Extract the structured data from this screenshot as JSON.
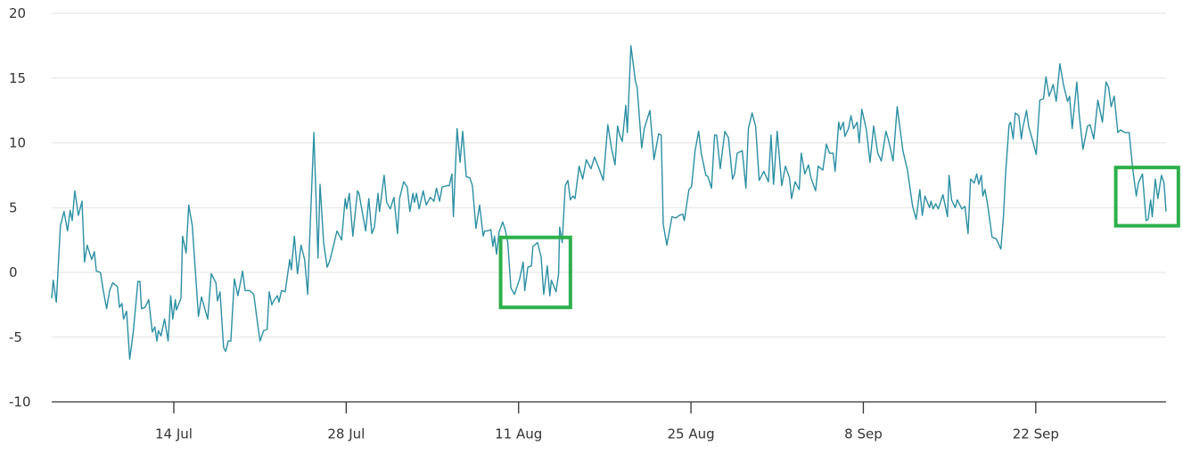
{
  "chart_data": {
    "type": "line",
    "title": "",
    "xlabel": "",
    "ylabel": "",
    "ylim": [
      -10,
      20
    ],
    "yticks": [
      -10,
      -5,
      0,
      5,
      10,
      15,
      20
    ],
    "xlim": [
      "07-04 02:00",
      "10-02 14:00"
    ],
    "xticks": [
      {
        "date": "07-14 00:00",
        "label": "14 Jul"
      },
      {
        "date": "07-28 00:00",
        "label": "28 Jul"
      },
      {
        "date": "08-11 00:00",
        "label": "11 Aug"
      },
      {
        "date": "08-25 00:00",
        "label": "25 Aug"
      },
      {
        "date": "09-08 00:00",
        "label": "8 Sep"
      },
      {
        "date": "09-22 00:00",
        "label": "22 Sep"
      }
    ],
    "grid": "horizontal",
    "line_color": "#2b8fa3",
    "highlight_color": "#2db04b",
    "highlights": [
      {
        "x": [
          "08-09 13:00",
          "08-15 05:00"
        ],
        "y": [
          -2.7,
          2.7
        ]
      },
      {
        "x": [
          "09-28 12:00",
          "10-03 14:00"
        ],
        "y": [
          3.6,
          8.1
        ]
      }
    ],
    "points": [
      [
        "07-04 02:00",
        -2.0
      ],
      [
        "07-04 05:00",
        -0.6
      ],
      [
        "07-04 11:00",
        -2.3
      ],
      [
        "07-04 19:00",
        3.6
      ],
      [
        "07-05 02:00",
        4.7
      ],
      [
        "07-05 09:00",
        3.2
      ],
      [
        "07-05 14:00",
        4.8
      ],
      [
        "07-05 18:00",
        4.0
      ],
      [
        "07-05 23:00",
        6.3
      ],
      [
        "07-06 06:00",
        4.4
      ],
      [
        "07-06 13:00",
        5.5
      ],
      [
        "07-06 18:00",
        0.8
      ],
      [
        "07-06 23:00",
        2.1
      ],
      [
        "07-07 08:00",
        1.0
      ],
      [
        "07-07 13:00",
        1.6
      ],
      [
        "07-07 17:00",
        0.1
      ],
      [
        "07-08 01:00",
        0.0
      ],
      [
        "07-08 06:00",
        -1.3
      ],
      [
        "07-08 13:00",
        -2.8
      ],
      [
        "07-08 19:00",
        -1.4
      ],
      [
        "07-09 01:00",
        -0.8
      ],
      [
        "07-09 10:00",
        -1.1
      ],
      [
        "07-09 14:00",
        -2.7
      ],
      [
        "07-09 19:00",
        -2.4
      ],
      [
        "07-09 22:00",
        -3.6
      ],
      [
        "07-10 04:00",
        -3.0
      ],
      [
        "07-10 10:00",
        -6.7
      ],
      [
        "07-10 17:00",
        -4.6
      ],
      [
        "07-11 02:00",
        -0.7
      ],
      [
        "07-11 06:00",
        -0.7
      ],
      [
        "07-11 09:00",
        -2.8
      ],
      [
        "07-11 16:00",
        -2.7
      ],
      [
        "07-11 23:00",
        -2.1
      ],
      [
        "07-12 06:00",
        -4.6
      ],
      [
        "07-12 11:00",
        -4.2
      ],
      [
        "07-12 15:00",
        -5.3
      ],
      [
        "07-12 18:00",
        -4.5
      ],
      [
        "07-12 23:00",
        -4.9
      ],
      [
        "07-13 06:00",
        -3.6
      ],
      [
        "07-13 13:00",
        -5.3
      ],
      [
        "07-13 18:00",
        -1.8
      ],
      [
        "07-13 22:00",
        -3.6
      ],
      [
        "07-14 03:00",
        -2.1
      ],
      [
        "07-14 05:00",
        -2.9
      ],
      [
        "07-14 14:00",
        -2.0
      ],
      [
        "07-14 17:00",
        2.8
      ],
      [
        "07-15 00:00",
        1.5
      ],
      [
        "07-15 05:00",
        5.2
      ],
      [
        "07-15 12:00",
        3.6
      ],
      [
        "07-16 00:00",
        -3.4
      ],
      [
        "07-16 06:00",
        -1.9
      ],
      [
        "07-16 18:00",
        -3.6
      ],
      [
        "07-17 01:00",
        -0.1
      ],
      [
        "07-17 10:00",
        -0.8
      ],
      [
        "07-17 13:00",
        -2.2
      ],
      [
        "07-17 18:00",
        -1.5
      ],
      [
        "07-18 01:00",
        -5.8
      ],
      [
        "07-18 05:00",
        -6.1
      ],
      [
        "07-18 10:00",
        -5.3
      ],
      [
        "07-18 15:00",
        -5.3
      ],
      [
        "07-18 22:00",
        -0.5
      ],
      [
        "07-19 05:00",
        -1.8
      ],
      [
        "07-19 14:00",
        0.1
      ],
      [
        "07-19 19:00",
        -1.4
      ],
      [
        "07-20 04:00",
        -1.4
      ],
      [
        "07-20 12:00",
        -1.7
      ],
      [
        "07-20 19:00",
        -3.9
      ],
      [
        "07-21 00:00",
        -5.3
      ],
      [
        "07-21 07:00",
        -4.5
      ],
      [
        "07-21 14:00",
        -4.4
      ],
      [
        "07-21 18:00",
        -1.5
      ],
      [
        "07-21 23:00",
        -2.5
      ],
      [
        "07-22 04:00",
        -2.1
      ],
      [
        "07-22 10:00",
        -1.8
      ],
      [
        "07-22 13:00",
        -2.3
      ],
      [
        "07-22 18:00",
        -1.4
      ],
      [
        "07-23 01:00",
        -1.5
      ],
      [
        "07-23 10:00",
        1.0
      ],
      [
        "07-23 13:00",
        0.2
      ],
      [
        "07-23 19:00",
        2.8
      ],
      [
        "07-24 01:00",
        -0.1
      ],
      [
        "07-24 08:00",
        2.1
      ],
      [
        "07-24 15:00",
        1.0
      ],
      [
        "07-24 21:00",
        -1.7
      ],
      [
        "07-25 00:00",
        1.7
      ],
      [
        "07-25 09:00",
        10.8
      ],
      [
        "07-25 17:00",
        1.1
      ],
      [
        "07-25 21:00",
        6.8
      ],
      [
        "07-26 04:00",
        2.3
      ],
      [
        "07-26 11:00",
        0.4
      ],
      [
        "07-26 16:00",
        0.9
      ],
      [
        "07-26 21:00",
        1.7
      ],
      [
        "07-27 06:00",
        3.2
      ],
      [
        "07-27 15:00",
        2.5
      ],
      [
        "07-27 22:00",
        5.7
      ],
      [
        "07-28 01:00",
        4.9
      ],
      [
        "07-28 06:00",
        6.1
      ],
      [
        "07-28 13:00",
        2.8
      ],
      [
        "07-28 22:00",
        6.3
      ],
      [
        "07-29 01:00",
        6.1
      ],
      [
        "07-29 08:00",
        4.5
      ],
      [
        "07-29 14:00",
        3.2
      ],
      [
        "07-29 20:00",
        5.7
      ],
      [
        "07-30 02:00",
        3.0
      ],
      [
        "07-30 07:00",
        3.5
      ],
      [
        "07-30 14:00",
        6.1
      ],
      [
        "07-30 17:00",
        4.7
      ],
      [
        "07-31 02:00",
        7.5
      ],
      [
        "07-31 07:00",
        5.4
      ],
      [
        "07-31 14:00",
        4.9
      ],
      [
        "07-31 21:00",
        5.8
      ],
      [
        "08-01 04:00",
        3.0
      ],
      [
        "08-01 08:00",
        5.7
      ],
      [
        "08-01 16:00",
        7.0
      ],
      [
        "08-01 23:00",
        6.6
      ],
      [
        "08-02 04:00",
        4.7
      ],
      [
        "08-02 10:00",
        6.1
      ],
      [
        "08-02 13:00",
        5.4
      ],
      [
        "08-02 17:00",
        6.1
      ],
      [
        "08-02 22:00",
        4.9
      ],
      [
        "08-03 06:00",
        6.3
      ],
      [
        "08-03 12:00",
        5.2
      ],
      [
        "08-03 20:00",
        5.8
      ],
      [
        "08-04 03:00",
        5.5
      ],
      [
        "08-04 08:00",
        6.5
      ],
      [
        "08-04 14:00",
        5.5
      ],
      [
        "08-04 19:00",
        6.6
      ],
      [
        "08-05 05:00",
        6.7
      ],
      [
        "08-05 09:00",
        6.7
      ],
      [
        "08-05 14:00",
        7.6
      ],
      [
        "08-05 17:00",
        4.3
      ],
      [
        "08-06 00:00",
        11.1
      ],
      [
        "08-06 06:00",
        8.5
      ],
      [
        "08-06 11:00",
        10.9
      ],
      [
        "08-06 18:00",
        7.4
      ],
      [
        "08-07 01:00",
        7.3
      ],
      [
        "08-07 06:00",
        6.7
      ],
      [
        "08-07 13:00",
        3.4
      ],
      [
        "08-07 20:00",
        5.2
      ],
      [
        "08-08 03:00",
        2.8
      ],
      [
        "08-08 06:00",
        3.2
      ],
      [
        "08-08 11:00",
        3.2
      ],
      [
        "08-08 18:00",
        3.3
      ],
      [
        "08-08 22:00",
        2.0
      ],
      [
        "08-09 01:00",
        2.8
      ],
      [
        "08-09 05:00",
        1.4
      ],
      [
        "08-09 10:00",
        3.1
      ],
      [
        "08-09 17:00",
        3.9
      ],
      [
        "08-09 22:00",
        3.3
      ],
      [
        "08-10 03:00",
        2.3
      ],
      [
        "08-10 09:00",
        -1.2
      ],
      [
        "08-10 16:00",
        -1.7
      ],
      [
        "08-11 02:00",
        -0.5
      ],
      [
        "08-11 09:00",
        0.8
      ],
      [
        "08-11 12:00",
        -1.4
      ],
      [
        "08-11 18:00",
        0.4
      ],
      [
        "08-12 01:00",
        0.5
      ],
      [
        "08-12 04:00",
        2.0
      ],
      [
        "08-12 13:00",
        2.3
      ],
      [
        "08-12 20:00",
        1.2
      ],
      [
        "08-13 01:00",
        -1.7
      ],
      [
        "08-13 08:00",
        0.5
      ],
      [
        "08-13 13:00",
        -1.8
      ],
      [
        "08-13 16:00",
        -0.6
      ],
      [
        "08-14 01:00",
        -1.5
      ],
      [
        "08-14 06:00",
        -0.1
      ],
      [
        "08-14 08:00",
        3.5
      ],
      [
        "08-14 13:00",
        2.3
      ],
      [
        "08-14 19:00",
        6.7
      ],
      [
        "08-15 00:00",
        7.1
      ],
      [
        "08-15 05:00",
        5.6
      ],
      [
        "08-15 10:00",
        5.9
      ],
      [
        "08-15 14:00",
        5.7
      ],
      [
        "08-15 22:00",
        8.2
      ],
      [
        "08-16 05:00",
        7.2
      ],
      [
        "08-16 12:00",
        8.7
      ],
      [
        "08-16 21:00",
        8.0
      ],
      [
        "08-17 04:00",
        8.9
      ],
      [
        "08-17 13:00",
        8.0
      ],
      [
        "08-17 21:00",
        7.1
      ],
      [
        "08-18 06:00",
        11.4
      ],
      [
        "08-18 13:00",
        9.6
      ],
      [
        "08-18 20:00",
        8.3
      ],
      [
        "08-19 01:00",
        11.3
      ],
      [
        "08-19 05:00",
        10.6
      ],
      [
        "08-19 10:00",
        10.1
      ],
      [
        "08-19 17:00",
        12.9
      ],
      [
        "08-19 20:00",
        10.8
      ],
      [
        "08-20 03:00",
        17.5
      ],
      [
        "08-20 12:00",
        14.7
      ],
      [
        "08-20 15:00",
        14.3
      ],
      [
        "08-21 00:00",
        9.6
      ],
      [
        "08-21 05:00",
        11.1
      ],
      [
        "08-21 16:00",
        12.5
      ],
      [
        "08-22 00:00",
        8.7
      ],
      [
        "08-22 09:00",
        10.7
      ],
      [
        "08-22 14:00",
        10.6
      ],
      [
        "08-22 18:00",
        3.7
      ],
      [
        "08-23 01:00",
        2.1
      ],
      [
        "08-23 11:00",
        4.3
      ],
      [
        "08-23 18:00",
        4.2
      ],
      [
        "08-24 01:00",
        4.4
      ],
      [
        "08-24 08:00",
        4.5
      ],
      [
        "08-24 11:00",
        4.0
      ],
      [
        "08-24 20:00",
        6.4
      ],
      [
        "08-25 01:00",
        6.6
      ],
      [
        "08-25 08:00",
        9.4
      ],
      [
        "08-25 15:00",
        10.9
      ],
      [
        "08-25 20:00",
        9.2
      ],
      [
        "08-26 05:00",
        7.5
      ],
      [
        "08-26 09:00",
        7.4
      ],
      [
        "08-26 16:00",
        6.5
      ],
      [
        "08-26 22:00",
        10.6
      ],
      [
        "08-27 02:00",
        10.6
      ],
      [
        "08-27 09:00",
        8.0
      ],
      [
        "08-27 18:00",
        10.9
      ],
      [
        "08-28 01:00",
        10.4
      ],
      [
        "08-28 09:00",
        7.2
      ],
      [
        "08-28 13:00",
        7.6
      ],
      [
        "08-28 18:00",
        9.2
      ],
      [
        "08-29 04:00",
        9.4
      ],
      [
        "08-29 11:00",
        6.5
      ],
      [
        "08-29 16:00",
        11.1
      ],
      [
        "08-29 23:00",
        12.3
      ],
      [
        "08-30 06:00",
        11.3
      ],
      [
        "08-30 13:00",
        7.1
      ],
      [
        "08-30 22:00",
        7.8
      ],
      [
        "08-31 07:00",
        7.0
      ],
      [
        "08-31 12:00",
        10.6
      ],
      [
        "08-31 17:00",
        6.8
      ],
      [
        "09-01 00:00",
        10.9
      ],
      [
        "09-01 09:00",
        6.7
      ],
      [
        "09-01 16:00",
        8.2
      ],
      [
        "09-02 00:00",
        7.3
      ],
      [
        "09-02 04:00",
        5.7
      ],
      [
        "09-02 11:00",
        7.0
      ],
      [
        "09-02 19:00",
        6.4
      ],
      [
        "09-02 23:00",
        9.2
      ],
      [
        "09-03 06:00",
        7.6
      ],
      [
        "09-03 13:00",
        8.3
      ],
      [
        "09-03 18:00",
        7.3
      ],
      [
        "09-04 03:00",
        6.3
      ],
      [
        "09-04 08:00",
        8.2
      ],
      [
        "09-04 17:00",
        7.9
      ],
      [
        "09-05 00:00",
        9.9
      ],
      [
        "09-05 06:00",
        9.2
      ],
      [
        "09-05 13:00",
        9.2
      ],
      [
        "09-05 17:00",
        7.8
      ],
      [
        "09-06 00:00",
        11.6
      ],
      [
        "09-06 03:00",
        11.0
      ],
      [
        "09-06 09:00",
        11.6
      ],
      [
        "09-06 12:00",
        10.5
      ],
      [
        "09-06 19:00",
        11.1
      ],
      [
        "09-07 00:00",
        12.1
      ],
      [
        "09-07 05:00",
        11.1
      ],
      [
        "09-07 12:00",
        11.6
      ],
      [
        "09-07 16:00",
        10.0
      ],
      [
        "09-07 21:00",
        12.6
      ],
      [
        "09-08 06:00",
        11.0
      ],
      [
        "09-08 13:00",
        8.5
      ],
      [
        "09-08 20:00",
        11.3
      ],
      [
        "09-09 04:00",
        9.2
      ],
      [
        "09-09 11:00",
        8.6
      ],
      [
        "09-09 20:00",
        10.9
      ],
      [
        "09-10 01:00",
        10.2
      ],
      [
        "09-10 10:00",
        8.6
      ],
      [
        "09-10 18:00",
        12.8
      ],
      [
        "09-11 05:00",
        9.4
      ],
      [
        "09-11 14:00",
        7.9
      ],
      [
        "09-12 00:00",
        5.1
      ],
      [
        "09-12 07:00",
        4.1
      ],
      [
        "09-12 14:00",
        6.4
      ],
      [
        "09-12 19:00",
        4.4
      ],
      [
        "09-13 00:00",
        5.9
      ],
      [
        "09-13 09:00",
        5.0
      ],
      [
        "09-13 12:00",
        5.5
      ],
      [
        "09-13 16:00",
        4.9
      ],
      [
        "09-13 21:00",
        5.3
      ],
      [
        "09-14 02:00",
        4.9
      ],
      [
        "09-14 11:00",
        6.0
      ],
      [
        "09-14 20:00",
        4.3
      ],
      [
        "09-14 23:00",
        7.5
      ],
      [
        "09-15 04:00",
        5.6
      ],
      [
        "09-15 11:00",
        5.0
      ],
      [
        "09-15 15:00",
        5.6
      ],
      [
        "09-16 00:00",
        4.9
      ],
      [
        "09-16 06:00",
        5.1
      ],
      [
        "09-16 12:00",
        3.0
      ],
      [
        "09-16 17:00",
        7.2
      ],
      [
        "09-17 00:00",
        6.9
      ],
      [
        "09-17 05:00",
        7.6
      ],
      [
        "09-17 09:00",
        6.8
      ],
      [
        "09-17 14:00",
        7.5
      ],
      [
        "09-17 17:00",
        5.9
      ],
      [
        "09-17 21:00",
        6.4
      ],
      [
        "09-18 02:00",
        5.3
      ],
      [
        "09-18 11:00",
        2.7
      ],
      [
        "09-18 19:00",
        2.6
      ],
      [
        "09-19 04:00",
        1.8
      ],
      [
        "09-19 09:00",
        4.3
      ],
      [
        "09-19 13:00",
        7.5
      ],
      [
        "09-19 20:00",
        11.4
      ],
      [
        "09-19 23:00",
        11.6
      ],
      [
        "09-20 04:00",
        10.3
      ],
      [
        "09-20 08:00",
        12.3
      ],
      [
        "09-20 15:00",
        12.1
      ],
      [
        "09-20 20:00",
        10.3
      ],
      [
        "09-20 23:00",
        11.2
      ],
      [
        "09-21 06:00",
        12.5
      ],
      [
        "09-21 10:00",
        11.3
      ],
      [
        "09-21 17:00",
        10.3
      ],
      [
        "09-22 01:00",
        9.1
      ],
      [
        "09-22 08:00",
        13.3
      ],
      [
        "09-22 15:00",
        13.4
      ],
      [
        "09-22 20:00",
        15.1
      ],
      [
        "09-23 02:00",
        13.6
      ],
      [
        "09-23 10:00",
        14.5
      ],
      [
        "09-23 16:00",
        13.2
      ],
      [
        "09-23 23:00",
        16.1
      ],
      [
        "09-24 06:00",
        14.5
      ],
      [
        "09-24 14:00",
        13.2
      ],
      [
        "09-24 18:00",
        13.6
      ],
      [
        "09-24 23:00",
        11.1
      ],
      [
        "09-25 08:00",
        14.7
      ],
      [
        "09-25 13:00",
        12.1
      ],
      [
        "09-25 20:00",
        9.5
      ],
      [
        "09-26 05:00",
        11.3
      ],
      [
        "09-26 10:00",
        11.4
      ],
      [
        "09-26 17:00",
        10.3
      ],
      [
        "09-27 01:00",
        13.3
      ],
      [
        "09-27 10:00",
        11.6
      ],
      [
        "09-27 17:00",
        14.7
      ],
      [
        "09-27 22:00",
        14.3
      ],
      [
        "09-28 03:00",
        12.8
      ],
      [
        "09-28 09:00",
        13.6
      ],
      [
        "09-28 16:00",
        10.8
      ],
      [
        "09-28 21:00",
        11.0
      ],
      [
        "09-29 06:00",
        10.8
      ],
      [
        "09-29 14:00",
        10.8
      ],
      [
        "09-29 21:00",
        8.0
      ],
      [
        "09-30 04:00",
        5.9
      ],
      [
        "09-30 08:00",
        6.9
      ],
      [
        "09-30 16:00",
        7.6
      ],
      [
        "09-30 23:00",
        4.0
      ],
      [
        "10-01 03:00",
        4.1
      ],
      [
        "10-01 08:00",
        5.6
      ],
      [
        "10-01 11:00",
        4.3
      ],
      [
        "10-01 17:00",
        7.2
      ],
      [
        "10-01 22:00",
        5.7
      ],
      [
        "10-02 05:00",
        7.5
      ],
      [
        "10-02 10:00",
        6.9
      ],
      [
        "10-02 14:00",
        4.7
      ]
    ]
  }
}
